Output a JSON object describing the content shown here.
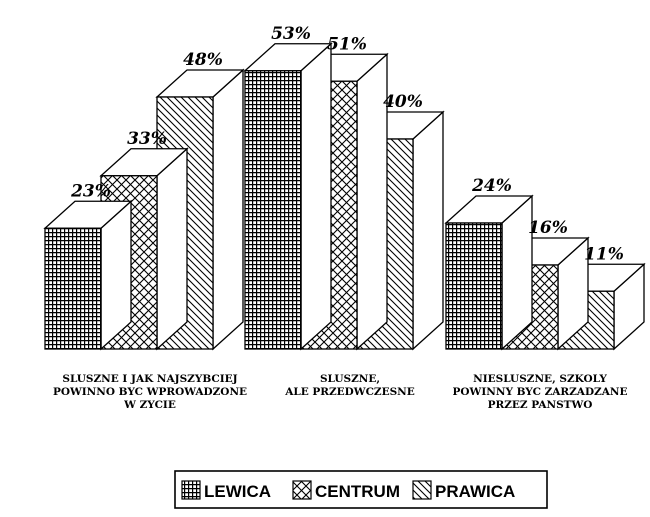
{
  "chart_data": {
    "type": "bar",
    "style": "3d-clustered",
    "categories": [
      [
        "SLUSZNE I JAK NAJSZYBCIEJ",
        "POWINNO BYC WPROWADZONE",
        "W ZYCIE"
      ],
      [
        "SLUSZNE,",
        "ALE PRZEDWCZESNE"
      ],
      [
        "NIESLUSZNE, SZKOLY",
        "POWINNY BYC ZARZADZANE",
        "PRZEZ PANSTWO"
      ]
    ],
    "series": [
      {
        "name": "LEWICA",
        "values": [
          23,
          53,
          24
        ],
        "pattern": "grid",
        "color": "#000000"
      },
      {
        "name": "CENTRUM",
        "values": [
          33,
          51,
          16
        ],
        "pattern": "crosshatch",
        "color": "#000000"
      },
      {
        "name": "PRAWICA",
        "values": [
          48,
          40,
          11
        ],
        "pattern": "diagonal",
        "color": "#000000"
      }
    ],
    "data_labels": [
      [
        "23%",
        "53%",
        "24%"
      ],
      [
        "33%",
        "51%",
        "16%"
      ],
      [
        "48%",
        "40%",
        "11%"
      ]
    ],
    "ylim": [
      0,
      53
    ],
    "grid": false,
    "legend_position": "bottom"
  }
}
